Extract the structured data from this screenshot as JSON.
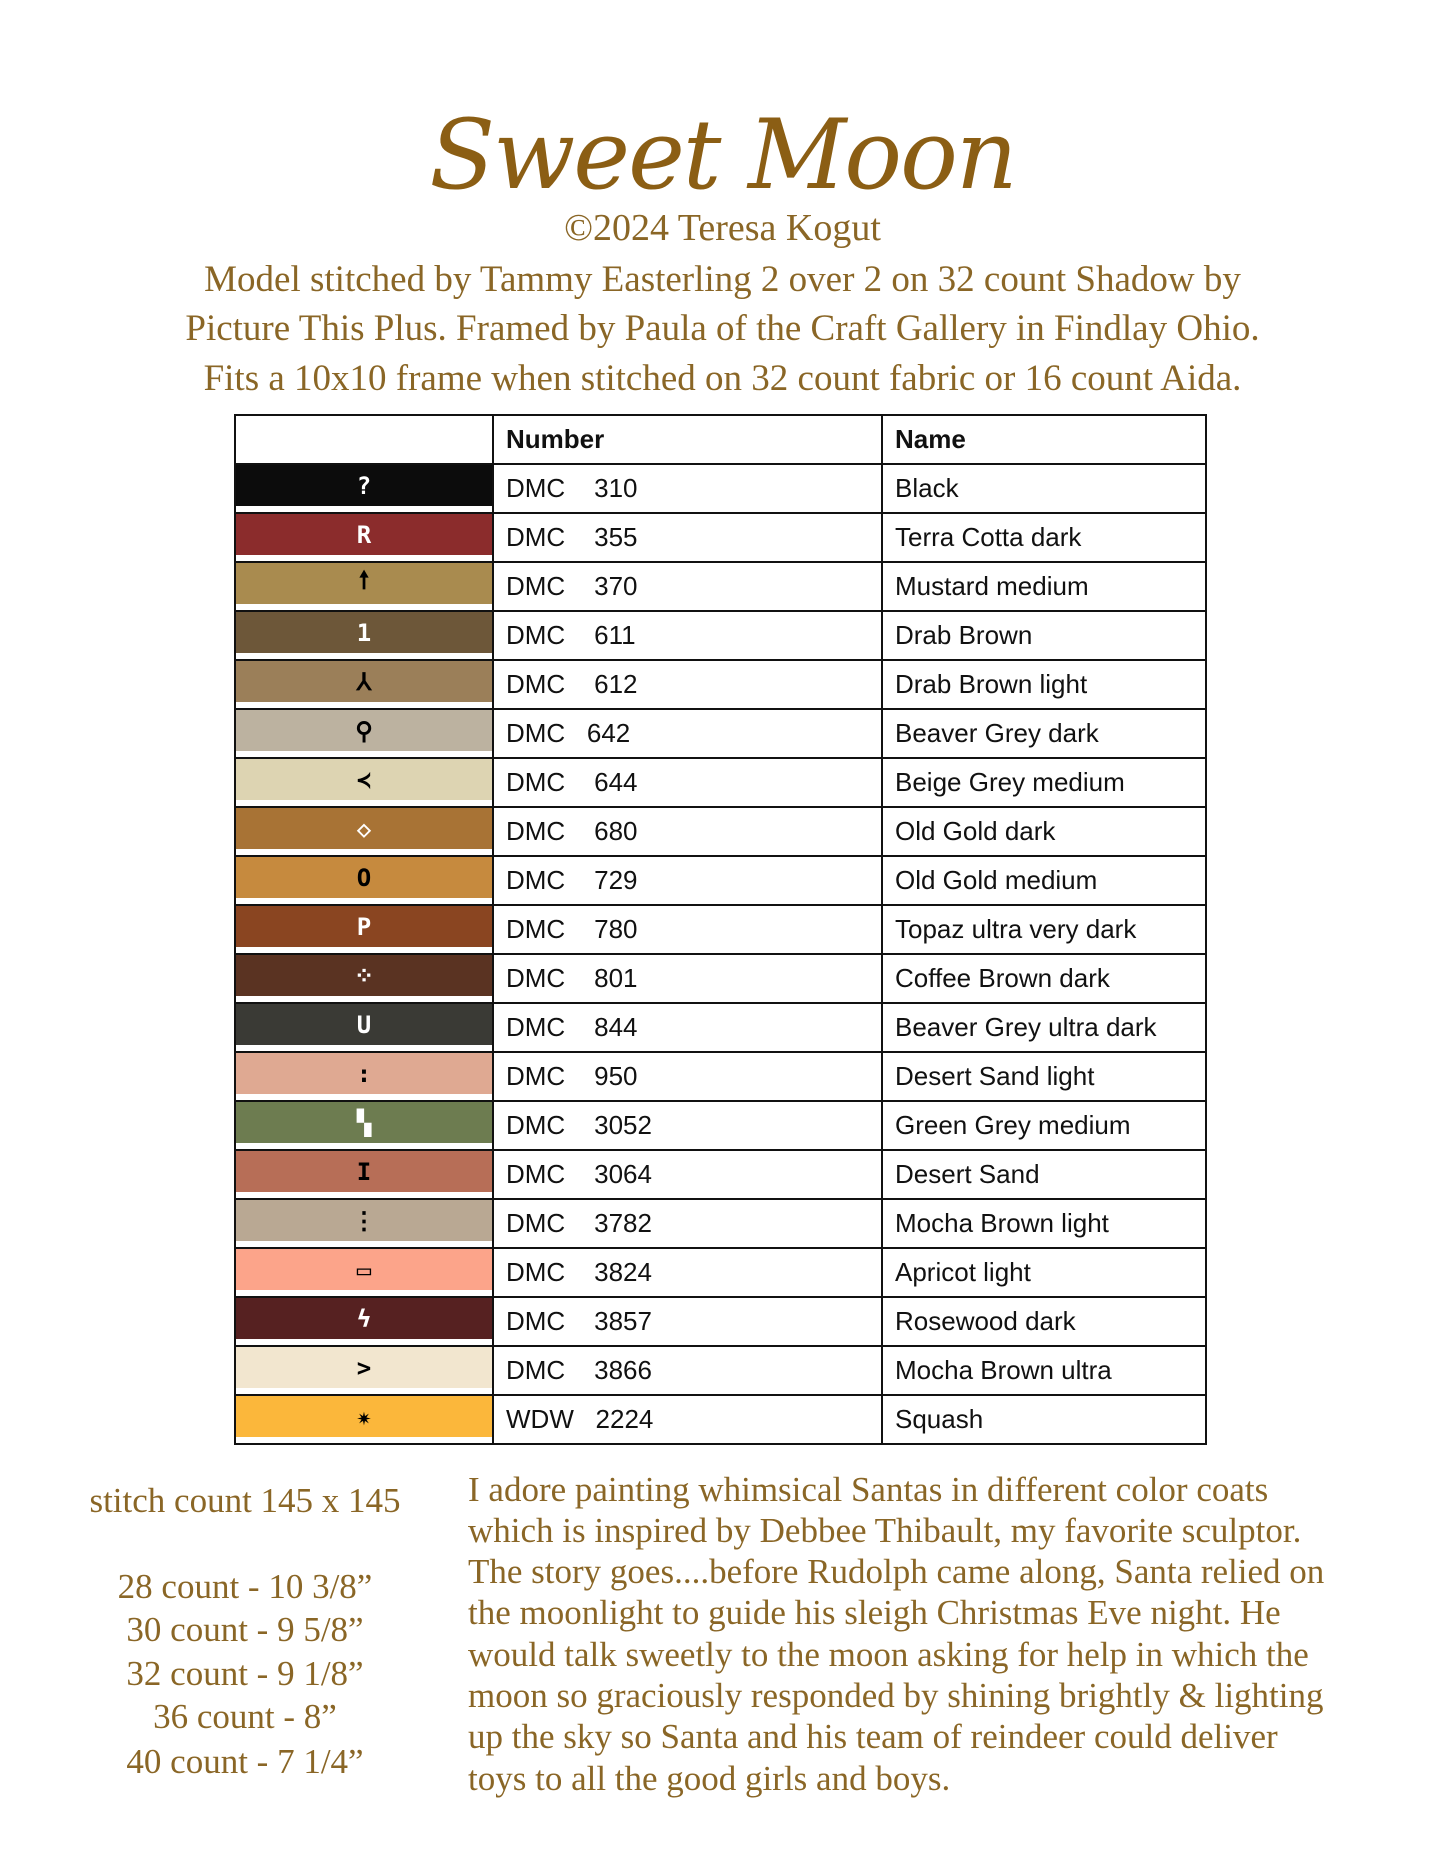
{
  "header": {
    "title": "Sweet Moon",
    "copyright": "©2024 Teresa Kogut",
    "intro_lines": [
      "Model stitched by Tammy Easterling 2 over 2 on 32 count Shadow by",
      "Picture This Plus. Framed by Paula of the Craft Gallery in Findlay Ohio.",
      "Fits a 10x10 frame when stitched on 32 count fabric or 16 count Aida."
    ]
  },
  "colors": {
    "title": "#8b5e14",
    "text": "#8a6626"
  },
  "table": {
    "headers": [
      "",
      "Number",
      "Name"
    ],
    "rows": [
      {
        "symbol": "?",
        "symbol_color": "#ffffff",
        "color": "#0c0c0c",
        "number": "DMC    310",
        "name": "Black"
      },
      {
        "symbol": "R",
        "symbol_color": "#ffffff",
        "color": "#8b2c2c",
        "number": "DMC    355",
        "name": "Terra Cotta dark"
      },
      {
        "symbol": "🠕",
        "symbol_color": "#000000",
        "color": "#a98b4f",
        "number": "DMC    370",
        "name": "Mustard medium"
      },
      {
        "symbol": "1",
        "symbol_color": "#ffffff",
        "color": "#6d5739",
        "number": "DMC    611",
        "name": "Drab Brown"
      },
      {
        "symbol": "⅄",
        "symbol_color": "#000000",
        "color": "#9b7f59",
        "number": "DMC    612",
        "name": "Drab Brown light"
      },
      {
        "symbol": "⚲",
        "symbol_color": "#000000",
        "color": "#bcb2a0",
        "number": "DMC   642",
        "name": "Beaver Grey dark"
      },
      {
        "symbol": "≺",
        "symbol_color": "#000000",
        "color": "#ddd4b2",
        "number": "DMC    644",
        "name": "Beige Grey medium"
      },
      {
        "symbol": "◇",
        "symbol_color": "#ffffff",
        "color": "#a87335",
        "number": "DMC    680",
        "name": "Old Gold dark"
      },
      {
        "symbol": "O",
        "symbol_color": "#000000",
        "color": "#c68a3e",
        "number": "DMC    729",
        "name": "Old Gold medium"
      },
      {
        "symbol": "P",
        "symbol_color": "#ffffff",
        "color": "#8a4521",
        "number": "DMC    780",
        "name": "Topaz ultra very dark"
      },
      {
        "symbol": "⁘",
        "symbol_color": "#ffffff",
        "color": "#5a3322",
        "number": "DMC    801",
        "name": "Coffee Brown dark"
      },
      {
        "symbol": "U",
        "symbol_color": "#ffffff",
        "color": "#3a3a35",
        "number": "DMC    844",
        "name": "Beaver Grey ultra dark"
      },
      {
        "symbol": ":",
        "symbol_color": "#000000",
        "color": "#dfa992",
        "number": "DMC    950",
        "name": "Desert Sand light"
      },
      {
        "symbol": "▚",
        "symbol_color": "#ffffff",
        "color": "#6d7c50",
        "number": "DMC    3052",
        "name": "Green Grey medium"
      },
      {
        "symbol": "I",
        "symbol_color": "#000000",
        "color": "#b76e57",
        "number": "DMC    3064",
        "name": "Desert Sand"
      },
      {
        "symbol": "⋮",
        "symbol_color": "#000000",
        "color": "#b9a893",
        "number": "DMC    3782",
        "name": "Mocha Brown light"
      },
      {
        "symbol": "▭",
        "symbol_color": "#000000",
        "color": "#fca48a",
        "number": "DMC    3824",
        "name": "Apricot light"
      },
      {
        "symbol": "ϟ",
        "symbol_color": "#ffffff",
        "color": "#562121",
        "number": "DMC    3857",
        "name": "Rosewood dark"
      },
      {
        "symbol": ">",
        "symbol_color": "#000000",
        "color": "#f2e6cf",
        "number": "DMC    3866",
        "name": "Mocha Brown ultra"
      },
      {
        "symbol": "✷",
        "symbol_color": "#000000",
        "color": "#fbb73b",
        "number": "WDW   2224",
        "name": "Squash"
      }
    ]
  },
  "stitch_count": "stitch count 145 x 145",
  "sizes": [
    "28 count - 10 3/8”",
    "30 count - 9 5/8”",
    "32 count - 9 1/8”",
    "36 count - 8”",
    "40 count - 7 1/4”"
  ],
  "story_lines": [
    "I adore painting whimsical Santas in different color coats",
    "which is inspired by Debbee Thibault, my favorite sculptor.",
    "The story goes....before Rudolph came along, Santa relied on",
    "the moonlight to guide his sleigh Christmas Eve night. He",
    "would talk sweetly to the moon asking for help in which the",
    "moon so graciously responded by shining brightly & lighting",
    "up the sky so Santa and his team of reindeer could deliver",
    "toys to all the good girls and boys."
  ]
}
